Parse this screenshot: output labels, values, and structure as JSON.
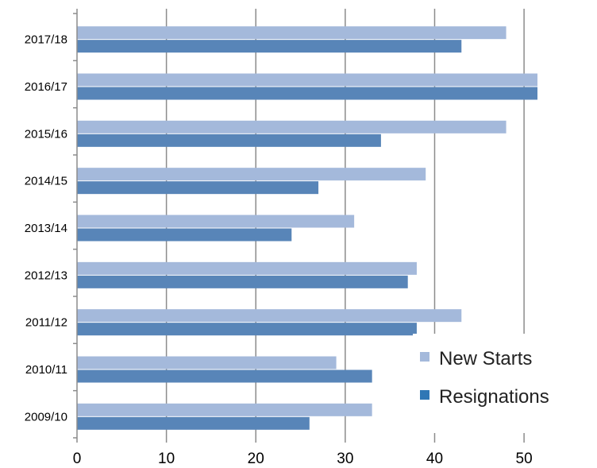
{
  "chart_data": {
    "type": "bar",
    "orientation": "horizontal",
    "categories": [
      "2009/10",
      "2010/11",
      "2011/12",
      "2012/13",
      "2013/14",
      "2014/15",
      "2015/16",
      "2016/17",
      "2017/18"
    ],
    "series": [
      {
        "name": "New Starts",
        "color": "#a4b9db",
        "values": [
          33,
          29,
          43,
          38,
          31,
          39,
          48,
          51.5,
          48
        ]
      },
      {
        "name": "Resignations",
        "color": "#5885b8",
        "values": [
          26,
          33,
          38,
          37,
          24,
          27,
          34,
          51.5,
          43
        ]
      }
    ],
    "x_ticks": [
      "0",
      "10",
      "20",
      "30",
      "40",
      "50"
    ],
    "xlim": [
      0,
      51.5
    ],
    "grid": "vertical",
    "legend": "bottom-right",
    "legend_marker_colors": [
      "#a4b9db",
      "#2f77b5"
    ]
  }
}
